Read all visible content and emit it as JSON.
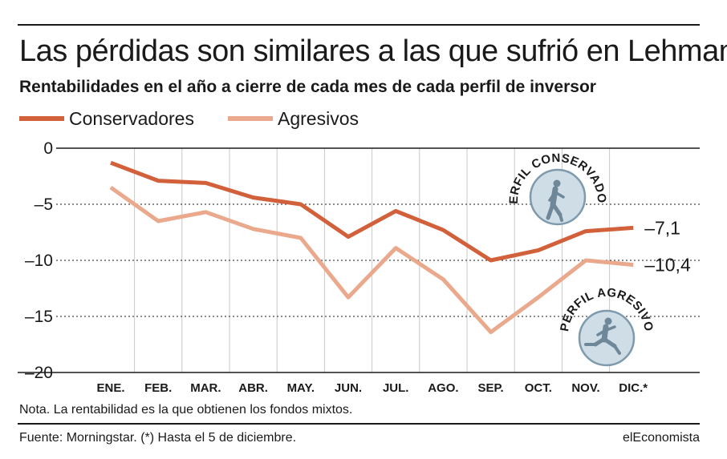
{
  "header": {
    "title": "Las pérdidas son similares a las que sufrió en Lehman",
    "subtitle": "Rentabilidades en el año a cierre de cada mes de cada perfil de inversor"
  },
  "legend": {
    "items": [
      {
        "label": "Conservadores",
        "color": "#d2603a"
      },
      {
        "label": "Agresivos",
        "color": "#eaa98c"
      }
    ]
  },
  "badges": {
    "conservative": {
      "text": "PERFIL CONSERVADOR",
      "icon": "runner-icon"
    },
    "aggressive": {
      "text": "PERFIL AGRESIVO",
      "icon": "runner-icon"
    }
  },
  "footer": {
    "note": "Nota. La rentabilidad es la que obtienen los fondos mixtos.",
    "source": "Fuente: Morningstar. (*) Hasta el 5 de diciembre.",
    "brand": "elEconomista"
  },
  "chart_data": {
    "type": "line",
    "title": "Las pérdidas son similares a las que sufrió en Lehman",
    "subtitle": "Rentabilidades en el año a cierre de cada mes de cada perfil de inversor",
    "categories": [
      "ENE.",
      "FEB.",
      "MAR.",
      "ABR.",
      "MAY.",
      "JUN.",
      "JUL.",
      "AGO.",
      "SEP.",
      "OCT.",
      "NOV.",
      "DIC.*"
    ],
    "series": [
      {
        "name": "Conservadores",
        "color": "#d2603a",
        "values": [
          -1.3,
          -2.9,
          -3.1,
          -4.4,
          -5.0,
          -7.9,
          -5.6,
          -7.3,
          -10.0,
          -9.1,
          -7.4,
          -7.1
        ]
      },
      {
        "name": "Agresivos",
        "color": "#eaa98c",
        "values": [
          -3.5,
          -6.5,
          -5.7,
          -7.2,
          -8.0,
          -13.3,
          -8.9,
          -11.7,
          -16.4,
          -13.3,
          -10.0,
          -10.4
        ]
      }
    ],
    "end_labels": [
      "–7,1",
      "–10,4"
    ],
    "y_ticks": [
      0,
      -5,
      -10,
      -15,
      -20
    ],
    "y_tick_labels": [
      "0",
      "–5",
      "–10",
      "–15",
      "–20"
    ],
    "ylim": [
      -20,
      0
    ],
    "grid": "vertical",
    "legend_position": "top-left"
  }
}
